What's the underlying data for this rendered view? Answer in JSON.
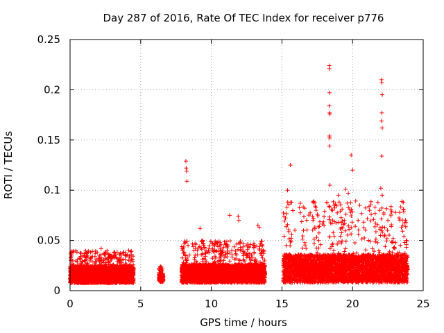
{
  "chart_data": {
    "type": "scatter",
    "title": "Day 287 of 2016, Rate Of TEC Index for receiver p776",
    "xlabel": "GPS time / hours",
    "ylabel": "ROTI / TECUs",
    "xlim": [
      0,
      25
    ],
    "ylim": [
      0,
      0.25
    ],
    "x_ticks": [
      0,
      5,
      10,
      15,
      20,
      25
    ],
    "x_tick_labels": [
      "0",
      "5",
      "10",
      "15",
      "20",
      "25"
    ],
    "y_ticks": [
      0,
      0.05,
      0.1,
      0.15,
      0.2,
      0.25
    ],
    "y_tick_labels": [
      "0",
      "0.05",
      "0.1",
      "0.15",
      "0.2",
      "0.25"
    ],
    "grid": true,
    "marker": "+",
    "series_color": "#ff0000",
    "segments": [
      {
        "start": 0.0,
        "end": 4.5,
        "base": 0.016,
        "spread": 0.012,
        "burst": 0.04
      },
      {
        "start": 6.3,
        "end": 6.6,
        "base": 0.013,
        "spread": 0.006,
        "burst": 0.024
      },
      {
        "start": 7.9,
        "end": 13.8,
        "base": 0.017,
        "spread": 0.013,
        "burst": 0.05
      },
      {
        "start": 15.1,
        "end": 23.9,
        "base": 0.022,
        "spread": 0.02,
        "burst": 0.09
      }
    ],
    "peaks": [
      {
        "x": 8.2,
        "y": 0.129
      },
      {
        "x": 8.22,
        "y": 0.122
      },
      {
        "x": 8.25,
        "y": 0.119
      },
      {
        "x": 8.27,
        "y": 0.109
      },
      {
        "x": 9.2,
        "y": 0.062
      },
      {
        "x": 9.4,
        "y": 0.05
      },
      {
        "x": 11.3,
        "y": 0.075
      },
      {
        "x": 11.9,
        "y": 0.074
      },
      {
        "x": 11.95,
        "y": 0.07
      },
      {
        "x": 13.3,
        "y": 0.065
      },
      {
        "x": 13.4,
        "y": 0.063
      },
      {
        "x": 15.6,
        "y": 0.125
      },
      {
        "x": 15.4,
        "y": 0.1
      },
      {
        "x": 16.3,
        "y": 0.087
      },
      {
        "x": 17.2,
        "y": 0.07
      },
      {
        "x": 18.35,
        "y": 0.224
      },
      {
        "x": 18.36,
        "y": 0.221
      },
      {
        "x": 18.37,
        "y": 0.197
      },
      {
        "x": 18.35,
        "y": 0.184
      },
      {
        "x": 18.38,
        "y": 0.177
      },
      {
        "x": 18.4,
        "y": 0.176
      },
      {
        "x": 18.36,
        "y": 0.154
      },
      {
        "x": 18.38,
        "y": 0.152
      },
      {
        "x": 18.37,
        "y": 0.144
      },
      {
        "x": 18.4,
        "y": 0.105
      },
      {
        "x": 19.0,
        "y": 0.095
      },
      {
        "x": 19.5,
        "y": 0.101
      },
      {
        "x": 19.9,
        "y": 0.135
      },
      {
        "x": 20.0,
        "y": 0.12
      },
      {
        "x": 19.7,
        "y": 0.097
      },
      {
        "x": 20.5,
        "y": 0.085
      },
      {
        "x": 21.2,
        "y": 0.08
      },
      {
        "x": 22.05,
        "y": 0.21
      },
      {
        "x": 22.08,
        "y": 0.207
      },
      {
        "x": 22.1,
        "y": 0.195
      },
      {
        "x": 22.08,
        "y": 0.177
      },
      {
        "x": 22.05,
        "y": 0.169
      },
      {
        "x": 22.1,
        "y": 0.162
      },
      {
        "x": 22.07,
        "y": 0.134
      },
      {
        "x": 22.0,
        "y": 0.102
      },
      {
        "x": 22.1,
        "y": 0.095
      },
      {
        "x": 21.8,
        "y": 0.088
      },
      {
        "x": 22.5,
        "y": 0.07
      },
      {
        "x": 23.8,
        "y": 0.05
      },
      {
        "x": 23.7,
        "y": 0.048
      },
      {
        "x": 6.4,
        "y": 0.024
      },
      {
        "x": 6.45,
        "y": 0.021
      },
      {
        "x": 4.15,
        "y": 0.04
      },
      {
        "x": 2.2,
        "y": 0.042
      },
      {
        "x": 3.1,
        "y": 0.038
      }
    ]
  }
}
